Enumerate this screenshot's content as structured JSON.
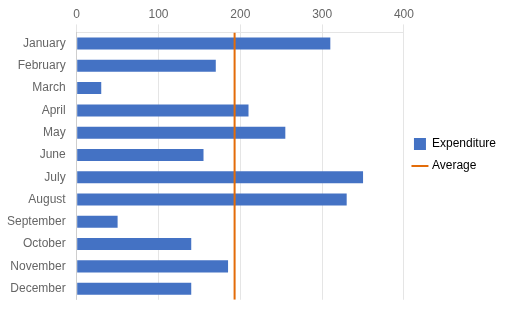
{
  "chart_data": {
    "type": "bar",
    "orientation": "horizontal",
    "categories": [
      "January",
      "February",
      "March",
      "April",
      "May",
      "June",
      "July",
      "August",
      "September",
      "October",
      "November",
      "December"
    ],
    "series": [
      {
        "name": "Expenditure",
        "color": "#4472C4",
        "values": [
          310,
          170,
          30,
          210,
          255,
          155,
          350,
          330,
          50,
          140,
          185,
          140
        ]
      }
    ],
    "average": {
      "name": "Average",
      "value": 193,
      "color": "#E36C09"
    },
    "xlim": [
      0,
      400
    ],
    "xticks": [
      0,
      100,
      200,
      300,
      400
    ],
    "grid": true,
    "legend": "right"
  }
}
